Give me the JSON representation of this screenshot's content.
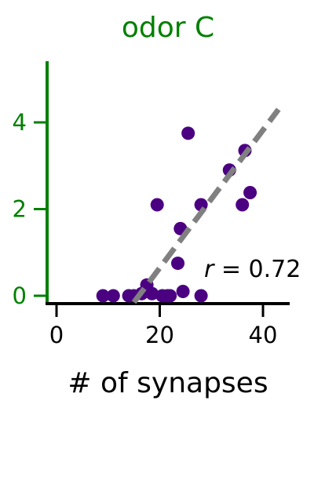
{
  "chart_data": {
    "type": "scatter",
    "title": "odor C",
    "xlabel": "# of synapses",
    "ylabel": "",
    "xlim": [
      -2,
      45
    ],
    "ylim": [
      -0.2,
      5.4
    ],
    "xticks": [
      0,
      20,
      40
    ],
    "yticks": [
      0,
      2,
      4
    ],
    "grid": false,
    "colors": {
      "points": "#4b0082",
      "fit_line": "#808080",
      "y_axis": "#008000",
      "x_axis": "#000000",
      "title": "#008000"
    },
    "points": [
      {
        "x": 9,
        "y": 0.0
      },
      {
        "x": 11,
        "y": 0.0
      },
      {
        "x": 14,
        "y": 0.0
      },
      {
        "x": 15,
        "y": 0.0
      },
      {
        "x": 16.5,
        "y": 0.05
      },
      {
        "x": 17.5,
        "y": 0.25
      },
      {
        "x": 18.5,
        "y": 0.05
      },
      {
        "x": 19.5,
        "y": 2.1
      },
      {
        "x": 20.5,
        "y": 0.0
      },
      {
        "x": 21.5,
        "y": 0.0
      },
      {
        "x": 22,
        "y": 0.0
      },
      {
        "x": 23.5,
        "y": 0.75
      },
      {
        "x": 24,
        "y": 1.55
      },
      {
        "x": 24.5,
        "y": 0.1
      },
      {
        "x": 25.5,
        "y": 3.75
      },
      {
        "x": 28,
        "y": 2.1
      },
      {
        "x": 28,
        "y": 0.0
      },
      {
        "x": 33.5,
        "y": 2.9
      },
      {
        "x": 36,
        "y": 2.1
      },
      {
        "x": 36.5,
        "y": 3.35
      },
      {
        "x": 37.5,
        "y": 2.38
      }
    ],
    "fit_line": {
      "x": [
        15,
        43
      ],
      "y": [
        -0.15,
        4.3
      ]
    },
    "annotation": {
      "r_symbol": "r",
      "text": " = 0.72"
    }
  }
}
